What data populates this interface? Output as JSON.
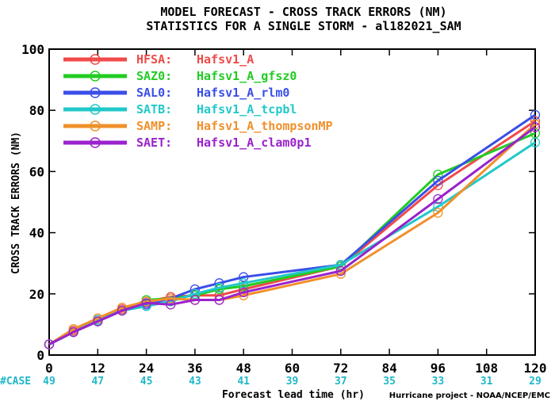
{
  "chart_data": {
    "type": "line",
    "title": "MODEL FORECAST - CROSS TRACK ERRORS (NM)",
    "subtitle": "STATISTICS FOR A SINGLE STORM - al182021_SAM",
    "xlabel": "Forecast lead time (hr)",
    "ylabel": "CROSS TRACK ERRORS (NM)",
    "xlim": [
      0,
      120
    ],
    "ylim": [
      0,
      100
    ],
    "x_ticks": [
      0,
      12,
      24,
      36,
      48,
      60,
      72,
      84,
      96,
      108,
      120
    ],
    "x_tick_labels": [
      "0",
      "12",
      "24",
      "36",
      "48",
      "60",
      "72",
      "84",
      "96",
      "108",
      "120"
    ],
    "y_ticks": [
      0,
      20,
      40,
      60,
      80,
      100
    ],
    "y_tick_labels": [
      "0",
      "20",
      "40",
      "60",
      "80",
      "100"
    ],
    "grid": false,
    "legend_position": "top-left",
    "x": [
      0,
      6,
      12,
      18,
      24,
      30,
      36,
      42,
      48,
      72,
      96,
      120
    ],
    "series": [
      {
        "code": "HFSA:",
        "name": "Hafsv1_A",
        "color": "#f04a4a",
        "values": [
          3.5,
          8.0,
          11.5,
          15.0,
          17.5,
          19.0,
          19.5,
          19.5,
          21.5,
          29.0,
          55.5,
          76.5
        ]
      },
      {
        "code": "SAZ0:",
        "name": "Hafsv1_A_gfsz0",
        "color": "#22cc22",
        "values": [
          3.5,
          7.5,
          11.0,
          14.5,
          18.0,
          18.5,
          19.5,
          21.5,
          22.5,
          29.0,
          59.0,
          72.5
        ]
      },
      {
        "code": "SAL0:",
        "name": "Hafsv1_A_rlm0",
        "color": "#3a4ee8",
        "values": [
          3.5,
          7.5,
          11.0,
          14.5,
          16.5,
          18.5,
          21.5,
          23.5,
          25.5,
          29.5,
          57.0,
          78.5
        ]
      },
      {
        "code": "SATB:",
        "name": "Hafsv1_A_tcpbl",
        "color": "#22c8c8",
        "values": [
          3.5,
          7.5,
          11.5,
          14.5,
          16.0,
          17.5,
          20.0,
          22.0,
          23.5,
          29.5,
          48.5,
          69.5
        ]
      },
      {
        "code": "SAMP:",
        "name": "Hafsv1_A_thompsonMP",
        "color": "#f0902a",
        "values": [
          3.5,
          8.5,
          12.0,
          15.5,
          17.5,
          18.5,
          18.0,
          18.0,
          19.5,
          26.5,
          46.5,
          75.5
        ]
      },
      {
        "code": "SAET:",
        "name": "Hafsv1_A_clam0p1",
        "color": "#9a22cc",
        "values": [
          3.5,
          7.5,
          11.0,
          14.5,
          17.0,
          16.5,
          18.0,
          18.0,
          20.5,
          27.5,
          51.0,
          74.5
        ]
      }
    ],
    "case_header": "#CASE",
    "case_counts": [
      {
        "x": 0,
        "n": "49"
      },
      {
        "x": 12,
        "n": "47"
      },
      {
        "x": 24,
        "n": "45"
      },
      {
        "x": 36,
        "n": "43"
      },
      {
        "x": 48,
        "n": "41"
      },
      {
        "x": 60,
        "n": "39"
      },
      {
        "x": 72,
        "n": "37"
      },
      {
        "x": 84,
        "n": "35"
      },
      {
        "x": 96,
        "n": "33"
      },
      {
        "x": 108,
        "n": "31"
      },
      {
        "x": 120,
        "n": "29"
      }
    ],
    "case_color": "#1fb8c8",
    "credit": "Hurricane project - NOAA/NCEP/EMC"
  }
}
